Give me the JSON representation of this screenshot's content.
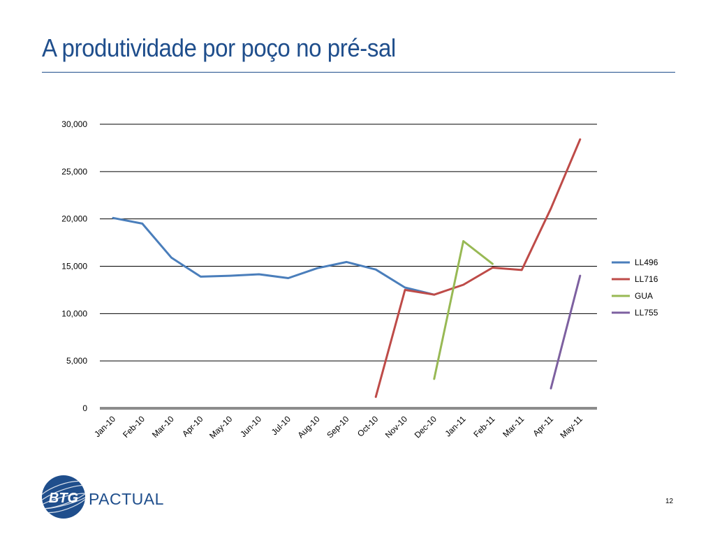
{
  "slide": {
    "title": "A produtividade por poço no pré-sal",
    "page_number": "12"
  },
  "logo": {
    "mark_text": "BTG",
    "word": "PACTUAL"
  },
  "colors": {
    "title": "#1f4e8c",
    "logo_blue": "#1f4e8c"
  },
  "chart_data": {
    "type": "line",
    "categories": [
      "Jan-10",
      "Feb-10",
      "Mar-10",
      "Apr-10",
      "May-10",
      "Jun-10",
      "Jul-10",
      "Aug-10",
      "Sep-10",
      "Oct-10",
      "Nov-10",
      "Dec-10",
      "Jan-11",
      "Feb-11",
      "Mar-11",
      "Apr-11",
      "May-11"
    ],
    "ylim": [
      0,
      30000
    ],
    "yticks": [
      0,
      5000,
      10000,
      15000,
      20000,
      25000,
      30000
    ],
    "ytick_labels": [
      "0",
      "5,000",
      "10,000",
      "15,000",
      "20,000",
      "25,000",
      "30,000"
    ],
    "grid": true,
    "legend_position": "right",
    "title": "",
    "xlabel": "",
    "ylabel": "",
    "series": [
      {
        "name": "LL496",
        "color": "#4a7ebb",
        "values": [
          20100,
          19500,
          15900,
          13900,
          14000,
          14150,
          13750,
          14800,
          15450,
          14650,
          12750,
          12000,
          null,
          null,
          null,
          null,
          null
        ]
      },
      {
        "name": "LL716",
        "color": "#be4b48",
        "values": [
          null,
          null,
          null,
          null,
          null,
          null,
          null,
          null,
          null,
          1200,
          12500,
          12000,
          13050,
          14850,
          14600,
          21100,
          28400
        ]
      },
      {
        "name": "GUA",
        "color": "#98b954",
        "values": [
          null,
          null,
          null,
          null,
          null,
          null,
          null,
          null,
          null,
          null,
          null,
          3100,
          17650,
          15250,
          null,
          null,
          null
        ]
      },
      {
        "name": "LL755",
        "color": "#7d60a0",
        "values": [
          null,
          null,
          null,
          null,
          null,
          null,
          null,
          null,
          null,
          null,
          null,
          null,
          null,
          null,
          null,
          2100,
          14000
        ]
      }
    ]
  }
}
